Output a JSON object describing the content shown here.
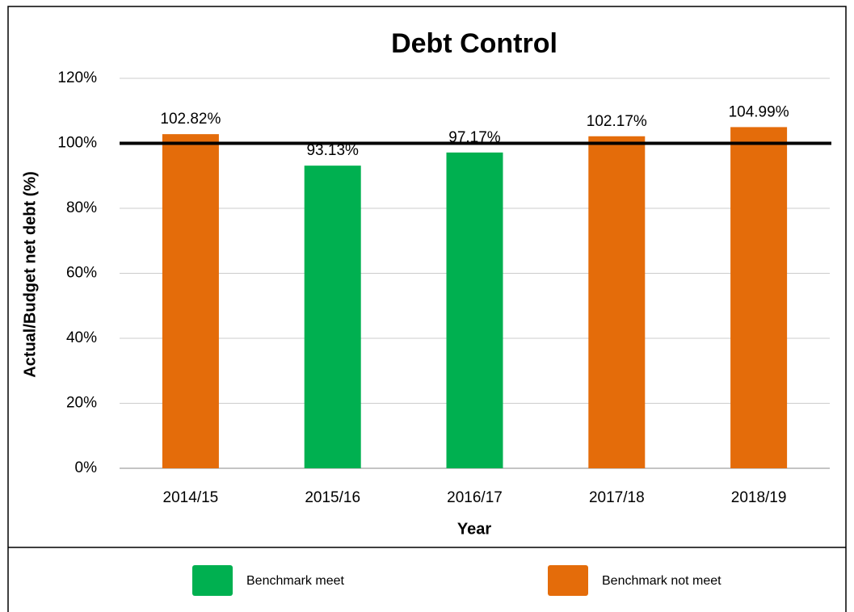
{
  "chart_data": {
    "type": "bar",
    "title": "Debt Control",
    "x_label": "Year",
    "y_label": "Actual/Budget net debt (%)",
    "categories": [
      "2014/15",
      "2015/16",
      "2016/17",
      "2017/18",
      "2018/19"
    ],
    "values": [
      102.82,
      93.13,
      97.17,
      102.17,
      104.99
    ],
    "value_labels": [
      "102.82%",
      "93.13%",
      "97.17%",
      "102.17%",
      "104.99%"
    ],
    "colors": [
      "#e46c0a",
      "#00b050",
      "#00b050",
      "#e46c0a",
      "#e46c0a"
    ],
    "reference_line": {
      "value": 100,
      "color": "#000000"
    },
    "ylim": [
      0,
      120
    ],
    "yticks": [
      {
        "value": 0,
        "label": "0%"
      },
      {
        "value": 20,
        "label": "20%"
      },
      {
        "value": 40,
        "label": "40%"
      },
      {
        "value": 60,
        "label": "60%"
      },
      {
        "value": 80,
        "label": "80%"
      },
      {
        "value": 100,
        "label": "100%"
      },
      {
        "value": 120,
        "label": "120%"
      }
    ],
    "grid": true,
    "legend": {
      "position": "bottom",
      "entries": [
        {
          "name": "Benchmark meet",
          "color": "#00b050"
        },
        {
          "name": "Benchmark not meet",
          "color": "#e46c0a"
        }
      ]
    }
  }
}
